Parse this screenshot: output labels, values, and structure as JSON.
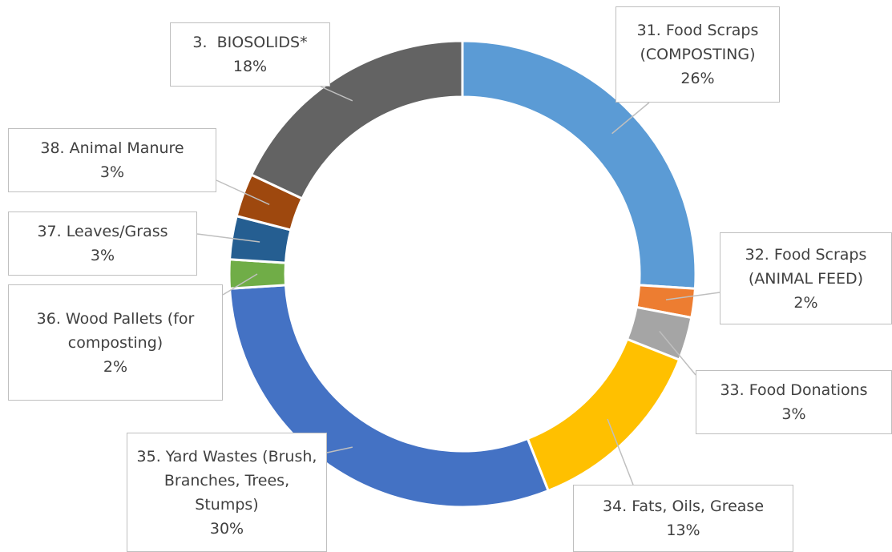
{
  "chart_data": {
    "type": "donut",
    "categories": [
      "31. Food Scraps (COMPOSTING)",
      "32. Food Scraps (ANIMAL FEED)",
      "33. Food Donations",
      "34. Fats, Oils, Grease",
      "35. Yard Wastes (Brush, Branches, Trees, Stumps)",
      "36. Wood Pallets (for composting)",
      "37. Leaves/Grass",
      "38. Animal Manure",
      "3.  BIOSOLIDS*"
    ],
    "values": [
      26,
      2,
      3,
      13,
      30,
      2,
      3,
      3,
      18
    ],
    "value_labels": [
      "26%",
      "2%",
      "3%",
      "13%",
      "30%",
      "2%",
      "3%",
      "3%",
      "18%"
    ],
    "colors": [
      "#5b9bd5",
      "#ed7d31",
      "#a5a5a5",
      "#ffc000",
      "#4472c4",
      "#70ad47",
      "#255e91",
      "#9e480e",
      "#636363"
    ]
  }
}
